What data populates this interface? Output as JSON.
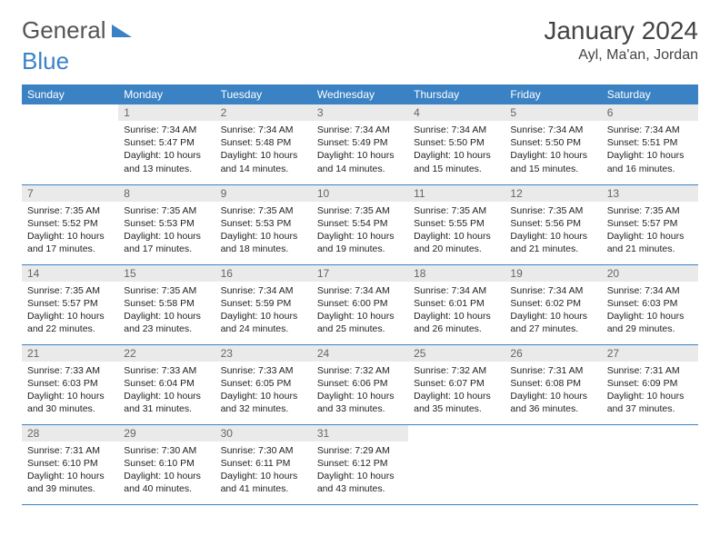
{
  "header": {
    "logo_part1": "General",
    "logo_part2": "Blue",
    "month_title": "January 2024",
    "location": "Ayl, Ma'an, Jordan"
  },
  "colors": {
    "header_bg": "#3b82c4",
    "header_text": "#ffffff",
    "daynum_bg": "#eaeaea",
    "daynum_text": "#666666",
    "body_text": "#222222",
    "divider": "#3b82c4"
  },
  "weekdays": [
    "Sunday",
    "Monday",
    "Tuesday",
    "Wednesday",
    "Thursday",
    "Friday",
    "Saturday"
  ],
  "weeks": [
    [
      {
        "num": "",
        "lines": []
      },
      {
        "num": "1",
        "lines": [
          "Sunrise: 7:34 AM",
          "Sunset: 5:47 PM",
          "Daylight: 10 hours",
          "and 13 minutes."
        ]
      },
      {
        "num": "2",
        "lines": [
          "Sunrise: 7:34 AM",
          "Sunset: 5:48 PM",
          "Daylight: 10 hours",
          "and 14 minutes."
        ]
      },
      {
        "num": "3",
        "lines": [
          "Sunrise: 7:34 AM",
          "Sunset: 5:49 PM",
          "Daylight: 10 hours",
          "and 14 minutes."
        ]
      },
      {
        "num": "4",
        "lines": [
          "Sunrise: 7:34 AM",
          "Sunset: 5:50 PM",
          "Daylight: 10 hours",
          "and 15 minutes."
        ]
      },
      {
        "num": "5",
        "lines": [
          "Sunrise: 7:34 AM",
          "Sunset: 5:50 PM",
          "Daylight: 10 hours",
          "and 15 minutes."
        ]
      },
      {
        "num": "6",
        "lines": [
          "Sunrise: 7:34 AM",
          "Sunset: 5:51 PM",
          "Daylight: 10 hours",
          "and 16 minutes."
        ]
      }
    ],
    [
      {
        "num": "7",
        "lines": [
          "Sunrise: 7:35 AM",
          "Sunset: 5:52 PM",
          "Daylight: 10 hours",
          "and 17 minutes."
        ]
      },
      {
        "num": "8",
        "lines": [
          "Sunrise: 7:35 AM",
          "Sunset: 5:53 PM",
          "Daylight: 10 hours",
          "and 17 minutes."
        ]
      },
      {
        "num": "9",
        "lines": [
          "Sunrise: 7:35 AM",
          "Sunset: 5:53 PM",
          "Daylight: 10 hours",
          "and 18 minutes."
        ]
      },
      {
        "num": "10",
        "lines": [
          "Sunrise: 7:35 AM",
          "Sunset: 5:54 PM",
          "Daylight: 10 hours",
          "and 19 minutes."
        ]
      },
      {
        "num": "11",
        "lines": [
          "Sunrise: 7:35 AM",
          "Sunset: 5:55 PM",
          "Daylight: 10 hours",
          "and 20 minutes."
        ]
      },
      {
        "num": "12",
        "lines": [
          "Sunrise: 7:35 AM",
          "Sunset: 5:56 PM",
          "Daylight: 10 hours",
          "and 21 minutes."
        ]
      },
      {
        "num": "13",
        "lines": [
          "Sunrise: 7:35 AM",
          "Sunset: 5:57 PM",
          "Daylight: 10 hours",
          "and 21 minutes."
        ]
      }
    ],
    [
      {
        "num": "14",
        "lines": [
          "Sunrise: 7:35 AM",
          "Sunset: 5:57 PM",
          "Daylight: 10 hours",
          "and 22 minutes."
        ]
      },
      {
        "num": "15",
        "lines": [
          "Sunrise: 7:35 AM",
          "Sunset: 5:58 PM",
          "Daylight: 10 hours",
          "and 23 minutes."
        ]
      },
      {
        "num": "16",
        "lines": [
          "Sunrise: 7:34 AM",
          "Sunset: 5:59 PM",
          "Daylight: 10 hours",
          "and 24 minutes."
        ]
      },
      {
        "num": "17",
        "lines": [
          "Sunrise: 7:34 AM",
          "Sunset: 6:00 PM",
          "Daylight: 10 hours",
          "and 25 minutes."
        ]
      },
      {
        "num": "18",
        "lines": [
          "Sunrise: 7:34 AM",
          "Sunset: 6:01 PM",
          "Daylight: 10 hours",
          "and 26 minutes."
        ]
      },
      {
        "num": "19",
        "lines": [
          "Sunrise: 7:34 AM",
          "Sunset: 6:02 PM",
          "Daylight: 10 hours",
          "and 27 minutes."
        ]
      },
      {
        "num": "20",
        "lines": [
          "Sunrise: 7:34 AM",
          "Sunset: 6:03 PM",
          "Daylight: 10 hours",
          "and 29 minutes."
        ]
      }
    ],
    [
      {
        "num": "21",
        "lines": [
          "Sunrise: 7:33 AM",
          "Sunset: 6:03 PM",
          "Daylight: 10 hours",
          "and 30 minutes."
        ]
      },
      {
        "num": "22",
        "lines": [
          "Sunrise: 7:33 AM",
          "Sunset: 6:04 PM",
          "Daylight: 10 hours",
          "and 31 minutes."
        ]
      },
      {
        "num": "23",
        "lines": [
          "Sunrise: 7:33 AM",
          "Sunset: 6:05 PM",
          "Daylight: 10 hours",
          "and 32 minutes."
        ]
      },
      {
        "num": "24",
        "lines": [
          "Sunrise: 7:32 AM",
          "Sunset: 6:06 PM",
          "Daylight: 10 hours",
          "and 33 minutes."
        ]
      },
      {
        "num": "25",
        "lines": [
          "Sunrise: 7:32 AM",
          "Sunset: 6:07 PM",
          "Daylight: 10 hours",
          "and 35 minutes."
        ]
      },
      {
        "num": "26",
        "lines": [
          "Sunrise: 7:31 AM",
          "Sunset: 6:08 PM",
          "Daylight: 10 hours",
          "and 36 minutes."
        ]
      },
      {
        "num": "27",
        "lines": [
          "Sunrise: 7:31 AM",
          "Sunset: 6:09 PM",
          "Daylight: 10 hours",
          "and 37 minutes."
        ]
      }
    ],
    [
      {
        "num": "28",
        "lines": [
          "Sunrise: 7:31 AM",
          "Sunset: 6:10 PM",
          "Daylight: 10 hours",
          "and 39 minutes."
        ]
      },
      {
        "num": "29",
        "lines": [
          "Sunrise: 7:30 AM",
          "Sunset: 6:10 PM",
          "Daylight: 10 hours",
          "and 40 minutes."
        ]
      },
      {
        "num": "30",
        "lines": [
          "Sunrise: 7:30 AM",
          "Sunset: 6:11 PM",
          "Daylight: 10 hours",
          "and 41 minutes."
        ]
      },
      {
        "num": "31",
        "lines": [
          "Sunrise: 7:29 AM",
          "Sunset: 6:12 PM",
          "Daylight: 10 hours",
          "and 43 minutes."
        ]
      },
      {
        "num": "",
        "lines": []
      },
      {
        "num": "",
        "lines": []
      },
      {
        "num": "",
        "lines": []
      }
    ]
  ]
}
